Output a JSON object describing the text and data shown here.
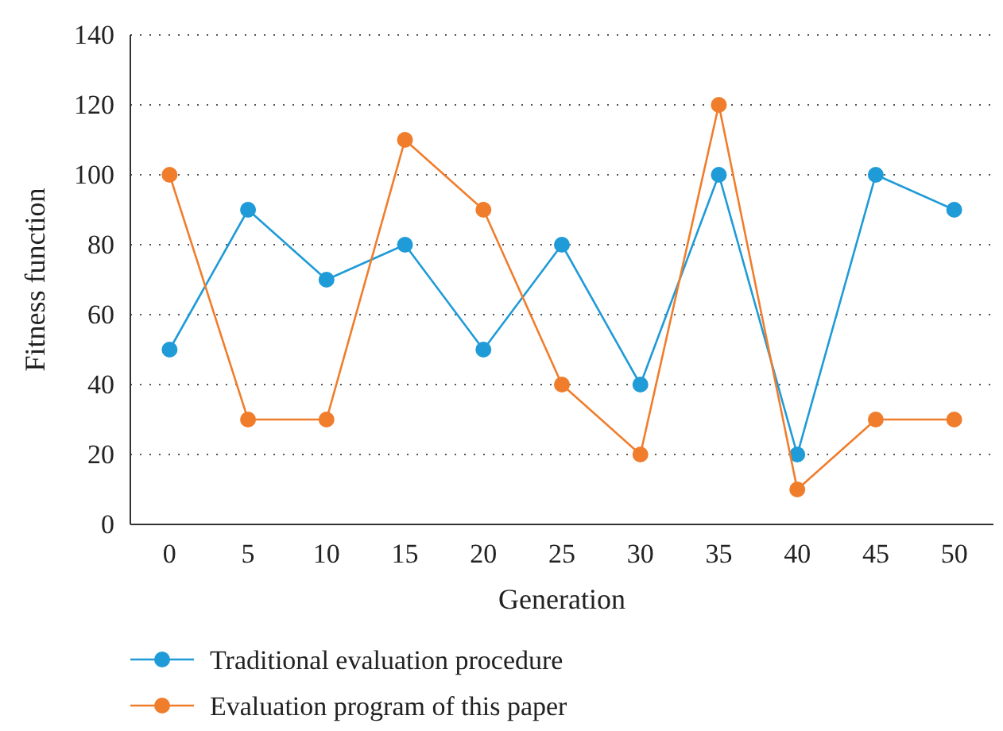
{
  "chart_data": {
    "type": "line",
    "xlabel": "Generation",
    "ylabel": "Fitness function",
    "categories": [
      "0",
      "5",
      "10",
      "15",
      "20",
      "25",
      "30",
      "35",
      "40",
      "45",
      "50"
    ],
    "series": [
      {
        "name": "Traditional evaluation procedure",
        "color": "#1f9bd7",
        "values": [
          50,
          90,
          70,
          80,
          50,
          80,
          40,
          100,
          20,
          100,
          90
        ]
      },
      {
        "name": "Evaluation program of this paper",
        "color": "#f07d2c",
        "values": [
          100,
          30,
          30,
          110,
          90,
          40,
          20,
          120,
          10,
          30,
          30
        ]
      }
    ],
    "ylim": [
      0,
      140
    ],
    "yticks": [
      0,
      20,
      40,
      60,
      80,
      100,
      120,
      140
    ],
    "grid": "y",
    "legend": "bottom",
    "marker": "circle",
    "line_style": "solid"
  }
}
